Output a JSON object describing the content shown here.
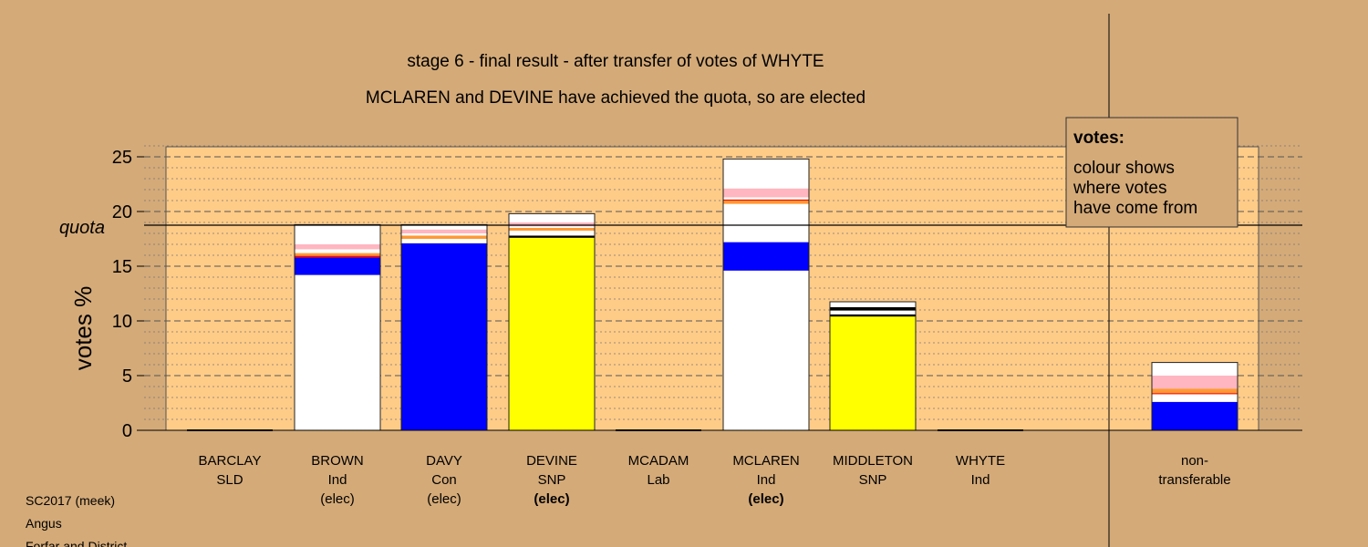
{
  "chart_data": {
    "type": "bar",
    "stacked": true,
    "title": "stage 6 - final result - after transfer of votes of WHYTE",
    "subtitle": "MCLAREN and DEVINE have achieved the quota, so are elected",
    "ylabel": "votes %",
    "ylim": [
      0,
      26
    ],
    "yticks": [
      0,
      5,
      10,
      15,
      20,
      25
    ],
    "quota": 18.8,
    "quota_label": "quota",
    "grid": true,
    "legend": {
      "title": "votes:",
      "lines": [
        "colour shows",
        "where votes",
        "have come from"
      ],
      "placement": "top-right"
    },
    "colors": {
      "own": "#ffffff",
      "con": "#0000ff",
      "snp": "#ffff00",
      "lab": "#ff0000",
      "sld": "#ff9933",
      "black": "#000000",
      "pink": "#ffb6c1",
      "plot_bg": "#ffcc88",
      "page_bg": "#d4aa78"
    },
    "candidates": [
      {
        "name": "BARCLAY",
        "party": "SLD",
        "status": "",
        "status_bold": false,
        "segments": []
      },
      {
        "name": "BROWN",
        "party": "Ind",
        "status": "(elec)",
        "status_bold": false,
        "segments": [
          {
            "color": "#ffffff",
            "value": 14.2
          },
          {
            "color": "#0000ff",
            "value": 1.6
          },
          {
            "color": "#ff0000",
            "value": 0.15
          },
          {
            "color": "#ff9933",
            "value": 0.25
          },
          {
            "color": "#ffffff",
            "value": 0.35
          },
          {
            "color": "#ffb6c1",
            "value": 0.45
          },
          {
            "color": "#ffffff",
            "value": 1.8
          }
        ]
      },
      {
        "name": "DAVY",
        "party": "Con",
        "status": "(elec)",
        "status_bold": false,
        "segments": [
          {
            "color": "#0000ff",
            "value": 17.1
          },
          {
            "color": "#ffffff",
            "value": 0.4
          },
          {
            "color": "#ff9933",
            "value": 0.3
          },
          {
            "color": "#ffffff",
            "value": 0.2
          },
          {
            "color": "#ffb6c1",
            "value": 0.35
          },
          {
            "color": "#ffffff",
            "value": 0.45
          }
        ]
      },
      {
        "name": "DEVINE",
        "party": "SNP",
        "status": "(elec)",
        "status_bold": true,
        "segments": [
          {
            "color": "#ffff00",
            "value": 17.6
          },
          {
            "color": "#000000",
            "value": 0.2
          },
          {
            "color": "#ffffff",
            "value": 0.45
          },
          {
            "color": "#ff9933",
            "value": 0.25
          },
          {
            "color": "#ffffff",
            "value": 0.15
          },
          {
            "color": "#ffb6c1",
            "value": 0.35
          },
          {
            "color": "#ffffff",
            "value": 0.8
          }
        ]
      },
      {
        "name": "MCADAM",
        "party": "Lab",
        "status": "",
        "status_bold": false,
        "segments": []
      },
      {
        "name": "MCLAREN",
        "party": "Ind",
        "status": "(elec)",
        "status_bold": true,
        "segments": [
          {
            "color": "#ffffff",
            "value": 14.6
          },
          {
            "color": "#0000ff",
            "value": 2.6
          },
          {
            "color": "#ffffff",
            "value": 3.5
          },
          {
            "color": "#ff9933",
            "value": 0.3
          },
          {
            "color": "#ff0000",
            "value": 0.1
          },
          {
            "color": "#ffffff",
            "value": 0.2
          },
          {
            "color": "#ffb6c1",
            "value": 0.8
          },
          {
            "color": "#ffffff",
            "value": 2.7
          }
        ]
      },
      {
        "name": "MIDDLETON",
        "party": "SNP",
        "status": "",
        "status_bold": false,
        "segments": [
          {
            "color": "#ffff00",
            "value": 10.4
          },
          {
            "color": "#000000",
            "value": 0.2
          },
          {
            "color": "#ffffff",
            "value": 0.35
          },
          {
            "color": "#000000",
            "value": 0.3
          },
          {
            "color": "#ffffff",
            "value": 0.5
          }
        ]
      },
      {
        "name": "WHYTE",
        "party": "Ind",
        "status": "",
        "status_bold": false,
        "segments": []
      },
      {
        "name": "non-",
        "party": "transferable",
        "status": "",
        "status_bold": false,
        "segments": [
          {
            "color": "#0000ff",
            "value": 2.6
          },
          {
            "color": "#ffffff",
            "value": 0.7
          },
          {
            "color": "#ff0000",
            "value": 0.1
          },
          {
            "color": "#ff9933",
            "value": 0.4
          },
          {
            "color": "#ffb6c1",
            "value": 1.2
          },
          {
            "color": "#ffffff",
            "value": 1.2
          }
        ]
      }
    ]
  },
  "footer": {
    "lines": [
      "SC2017 (meek)",
      "Angus",
      "Forfar and District"
    ]
  }
}
